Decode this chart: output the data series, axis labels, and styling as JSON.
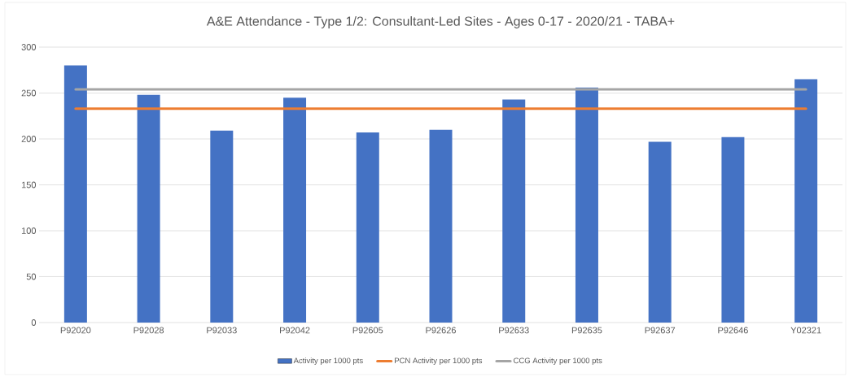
{
  "chart_data": {
    "type": "bar",
    "title": "A&E Attendance - Type 1/2: Consultant-Led Sites - Ages 0-17 - 2020/21 - TABA+",
    "categories": [
      "P92020",
      "P92028",
      "P92033",
      "P92042",
      "P92605",
      "P92626",
      "P92633",
      "P92635",
      "P92637",
      "P92646",
      "Y02321"
    ],
    "series": [
      {
        "name": "Activity per 1000 pts",
        "color": "#4472c4",
        "values": [
          280,
          248,
          209,
          245,
          207,
          210,
          243,
          256,
          197,
          202,
          265
        ]
      },
      {
        "name": "PCN Activity per 1000 pts",
        "type": "line",
        "color": "#ed7d31",
        "values": [
          233,
          233,
          233,
          233,
          233,
          233,
          233,
          233,
          233,
          233,
          233
        ]
      },
      {
        "name": "CCG Activity per 1000 pts",
        "type": "line",
        "color": "#a5a5a5",
        "values": [
          254,
          254,
          254,
          254,
          254,
          254,
          254,
          254,
          254,
          254,
          254
        ]
      }
    ],
    "ylim": [
      0,
      300
    ],
    "yticks": [
      0,
      50,
      100,
      150,
      200,
      250,
      300
    ],
    "grid": "y",
    "legend": "bottom"
  }
}
